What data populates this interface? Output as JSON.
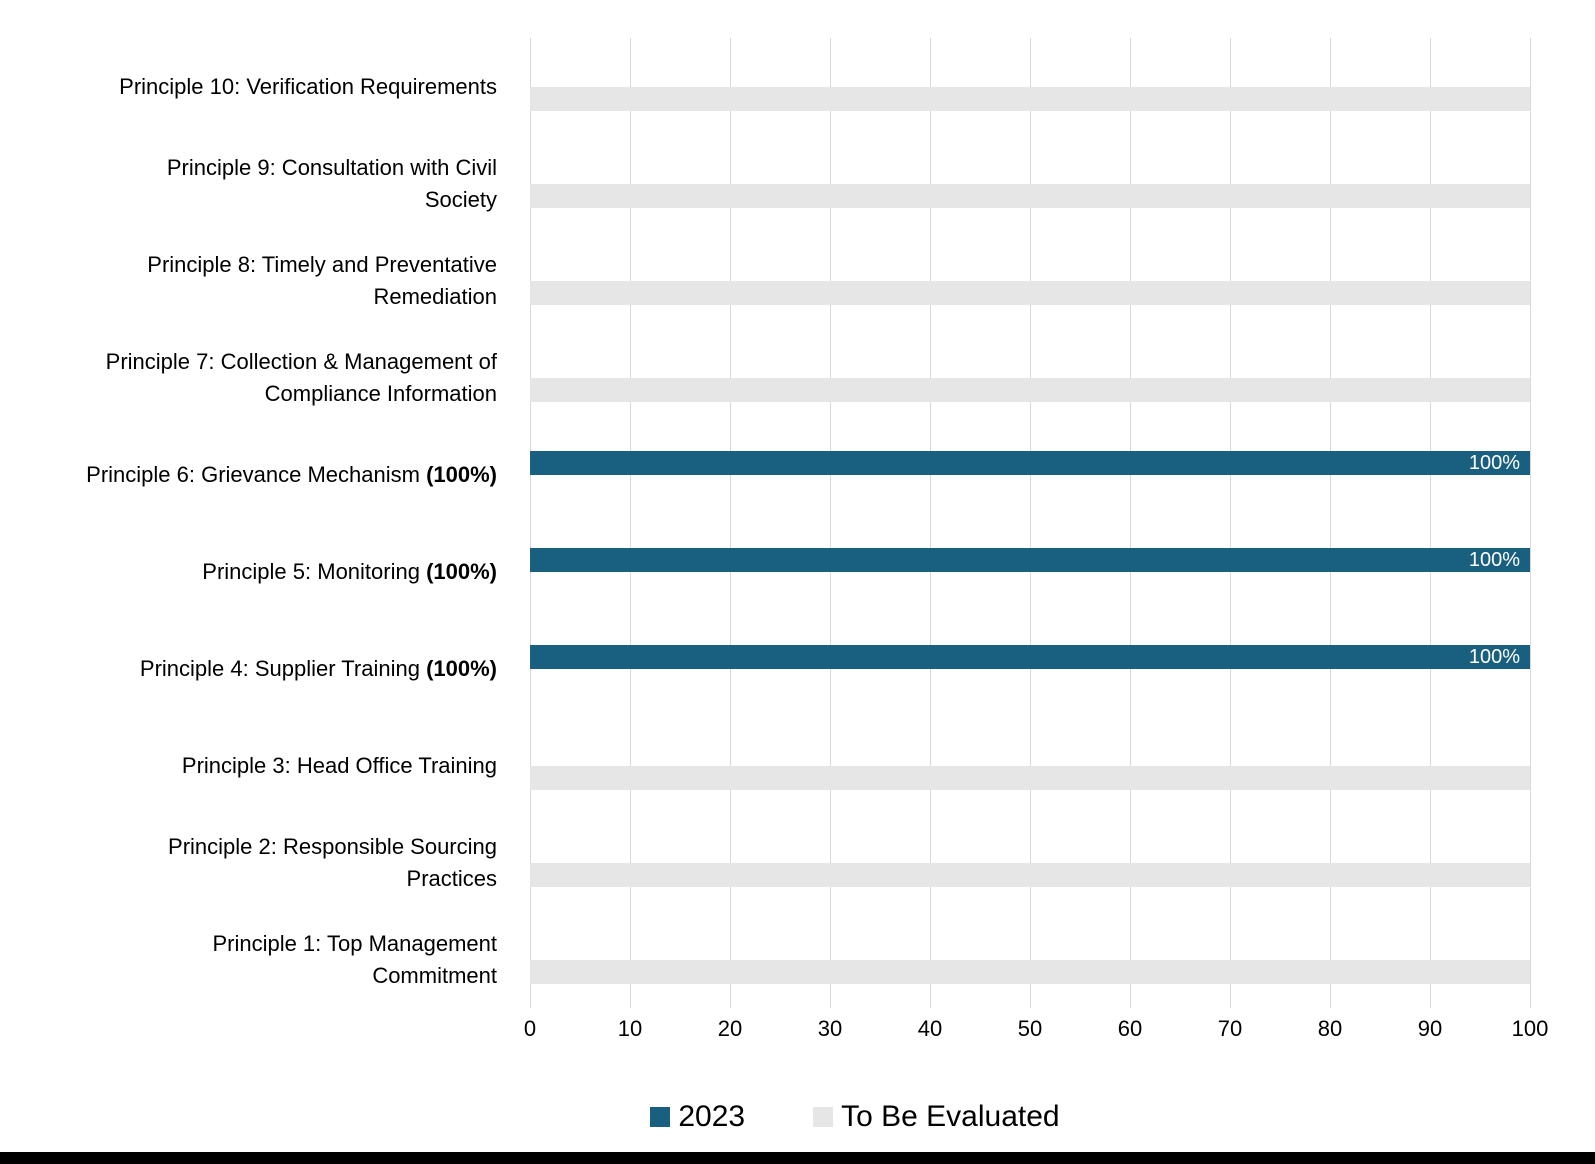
{
  "page": {
    "background": "#ffffff",
    "bottom_strip_color": "#000000"
  },
  "chart_data": {
    "type": "bar",
    "orientation": "horizontal",
    "title": "",
    "xlabel": "",
    "ylabel": "",
    "grid": "vertical-only",
    "gridline_color": "#d9d9d9",
    "x_axis": {
      "min": 0,
      "max": 100,
      "tick_interval": 10,
      "ticks": [
        0,
        10,
        20,
        30,
        40,
        50,
        60,
        70,
        80,
        90,
        100
      ]
    },
    "series": [
      {
        "name": "2023",
        "color": "#195f7f"
      },
      {
        "name": "To Be Evaluated",
        "color": "#e6e6e6"
      }
    ],
    "categories": [
      {
        "lines": [
          {
            "text": "Principle 10: Verification Requirements"
          }
        ],
        "series": "To Be Evaluated",
        "value": 100,
        "bar_label": ""
      },
      {
        "lines": [
          {
            "text": "Principle 9: Consultation with Civil"
          },
          {
            "text": "Society"
          }
        ],
        "series": "To Be Evaluated",
        "value": 100,
        "bar_label": ""
      },
      {
        "lines": [
          {
            "text": "Principle 8: Timely and Preventative"
          },
          {
            "text": "Remediation"
          }
        ],
        "series": "To Be Evaluated",
        "value": 100,
        "bar_label": ""
      },
      {
        "lines": [
          {
            "text": "Principle 7: Collection & Management of"
          },
          {
            "text": "Compliance Information"
          }
        ],
        "series": "To Be Evaluated",
        "value": 100,
        "bar_label": ""
      },
      {
        "lines": [
          {
            "text": "Principle 6: Grievance Mechanism ",
            "bold": "(100%)"
          }
        ],
        "series": "2023",
        "value": 100,
        "bar_label": "100%"
      },
      {
        "lines": [
          {
            "text": "Principle 5: Monitoring ",
            "bold": "(100%)"
          }
        ],
        "series": "2023",
        "value": 100,
        "bar_label": "100%"
      },
      {
        "lines": [
          {
            "text": "Principle 4: Supplier Training ",
            "bold": "(100%)"
          }
        ],
        "series": "2023",
        "value": 100,
        "bar_label": "100%"
      },
      {
        "lines": [
          {
            "text": "Principle 3: Head Office Training"
          }
        ],
        "series": "To Be Evaluated",
        "value": 100,
        "bar_label": ""
      },
      {
        "lines": [
          {
            "text": "Principle 2: Responsible Sourcing"
          },
          {
            "text": "Practices"
          }
        ],
        "series": "To Be Evaluated",
        "value": 100,
        "bar_label": ""
      },
      {
        "lines": [
          {
            "text": "Principle 1: Top Management"
          },
          {
            "text": "Commitment"
          }
        ],
        "series": "To Be Evaluated",
        "value": 100,
        "bar_label": ""
      }
    ],
    "legend_position": "bottom",
    "legend": [
      {
        "label": "2023",
        "color": "#195f7f"
      },
      {
        "label": "To Be Evaluated",
        "color": "#e6e6e6"
      }
    ]
  }
}
